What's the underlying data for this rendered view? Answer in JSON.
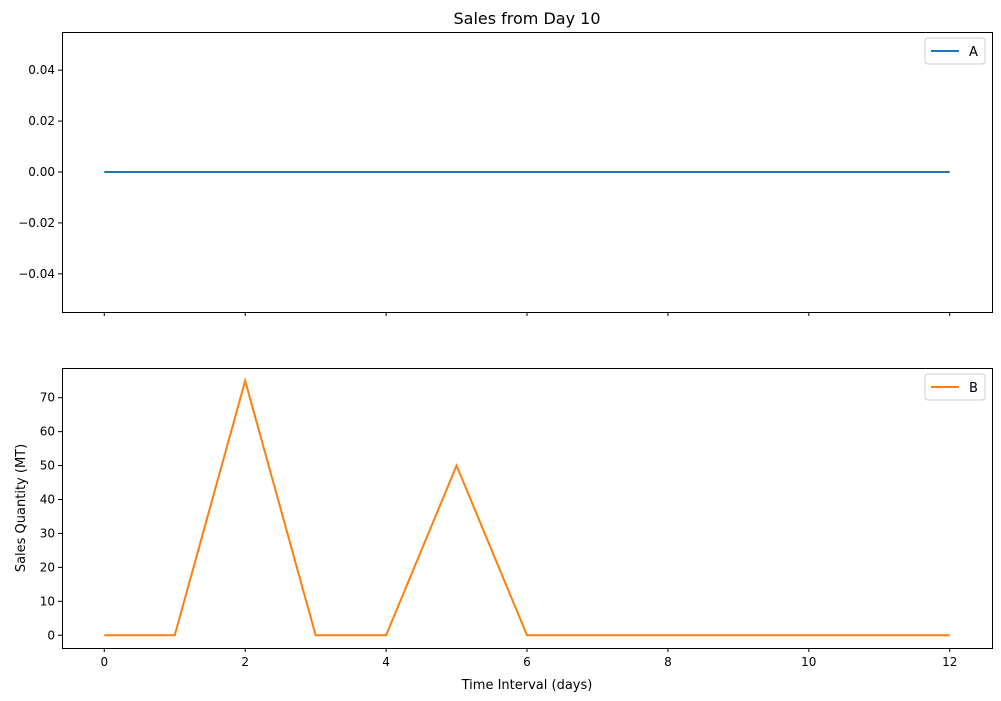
{
  "chart_data": [
    {
      "type": "line",
      "title": "Sales from Day 10",
      "xlabel": "",
      "ylabel": "",
      "xlim": [
        -0.6,
        12.6
      ],
      "ylim": [
        -0.055,
        0.055
      ],
      "xticks": [
        0,
        2,
        4,
        6,
        8,
        10,
        12
      ],
      "xtick_labels_visible": false,
      "yticks": [
        -0.04,
        -0.02,
        0.0,
        0.02,
        0.04
      ],
      "ytick_labels": [
        "−0.04",
        "−0.02",
        "0.00",
        "0.02",
        "0.04"
      ],
      "legend_position": "top-right",
      "grid": false,
      "series": [
        {
          "name": "A",
          "color": "#1f77b4",
          "x": [
            0,
            1,
            2,
            3,
            4,
            5,
            6,
            7,
            8,
            9,
            10,
            11,
            12
          ],
          "values": [
            0,
            0,
            0,
            0,
            0,
            0,
            0,
            0,
            0,
            0,
            0,
            0,
            0
          ]
        }
      ]
    },
    {
      "type": "line",
      "title": "",
      "xlabel": "Time Interval (days)",
      "ylabel": "Sales Quantity (MT)",
      "xlim": [
        -0.6,
        12.6
      ],
      "ylim": [
        -3.75,
        78.75
      ],
      "xticks": [
        0,
        2,
        4,
        6,
        8,
        10,
        12
      ],
      "xtick_labels": [
        "0",
        "2",
        "4",
        "6",
        "8",
        "10",
        "12"
      ],
      "xtick_labels_visible": true,
      "yticks": [
        0,
        10,
        20,
        30,
        40,
        50,
        60,
        70
      ],
      "ytick_labels": [
        "0",
        "10",
        "20",
        "30",
        "40",
        "50",
        "60",
        "70"
      ],
      "legend_position": "top-right",
      "grid": false,
      "series": [
        {
          "name": "B",
          "color": "#ff7f0e",
          "x": [
            0,
            1,
            2,
            3,
            4,
            5,
            6,
            7,
            8,
            9,
            10,
            11,
            12
          ],
          "values": [
            0,
            0,
            75,
            0,
            0,
            50,
            0,
            0,
            0,
            0,
            0,
            0,
            0
          ]
        }
      ]
    }
  ]
}
